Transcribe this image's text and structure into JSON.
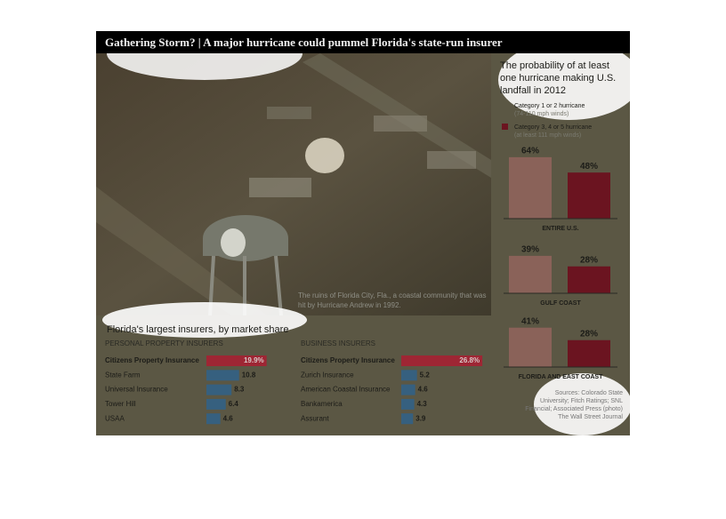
{
  "header": {
    "title": "Gathering Storm? | A major hurricane could pummel Florida's state-run insurer"
  },
  "photo_caption": "The ruins of Florida City, Fla., a coastal community that was hit by Hurricane Andrew in 1992.",
  "sources": {
    "text": "Sources: Colorado State University; Fitch Ratings; SNL Financial; Associated Press (photo)",
    "credit": "The Wall Street Journal"
  },
  "chart_data": [
    {
      "type": "bar",
      "title": "The probability of at least one hurricane making U.S. landfall in 2012",
      "categories": [
        "ENTIRE U.S.",
        "GULF COAST",
        "FLORIDA AND EAST COAST"
      ],
      "series": [
        {
          "name": "Category 1 or 2 hurricane",
          "description": "(74-110 mph winds)",
          "color": "#8a6259",
          "values": [
            64,
            39,
            41
          ],
          "value_labels": [
            "64%",
            "39%",
            "41%"
          ]
        },
        {
          "name": "Category 3, 4 or 5 hurricane",
          "description": "(at least 111 mph winds)",
          "color": "#6b1420",
          "values": [
            48,
            28,
            28
          ],
          "value_labels": [
            "48%",
            "28%",
            "28%"
          ]
        }
      ]
    },
    {
      "type": "barh",
      "title": "Florida's largest insurers, by market share",
      "panels": [
        {
          "subtitle": "PERSONAL PROPERTY INSURERS",
          "categories": [
            "Citizens Property Insurance",
            "State Farm",
            "Universal Insurance",
            "Tower Hill",
            "USAA"
          ],
          "values": [
            19.9,
            10.8,
            8.3,
            6.4,
            4.6
          ],
          "value_labels": [
            "19.9%",
            "10.8",
            "8.3",
            "6.4",
            "4.6"
          ],
          "colors": [
            "#9e2634",
            "#36607f",
            "#36607f",
            "#36607f",
            "#36607f"
          ]
        },
        {
          "subtitle": "BUSINESS INSURERS",
          "categories": [
            "Citizens Property Insurance",
            "Zurich Insurance",
            "American Coastal Insurance",
            "Bankamerica",
            "Assurant"
          ],
          "values": [
            26.8,
            5.2,
            4.6,
            4.3,
            3.9
          ],
          "value_labels": [
            "26.8%",
            "5.2",
            "4.6",
            "4.3",
            "3.9"
          ],
          "colors": [
            "#9e2634",
            "#36607f",
            "#36607f",
            "#36607f",
            "#36607f"
          ]
        }
      ]
    }
  ]
}
